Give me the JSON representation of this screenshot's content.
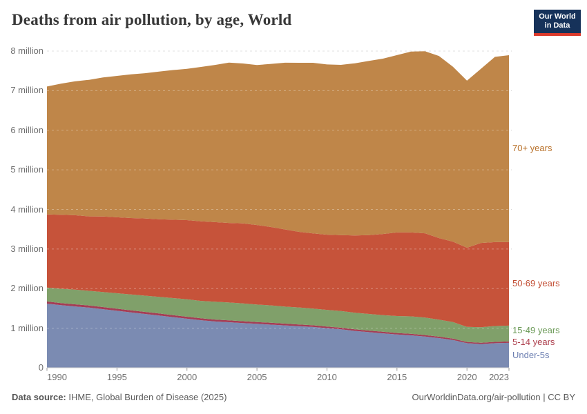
{
  "header": {
    "title": "Deaths from air pollution, by age, World",
    "logo": {
      "line1": "Our World",
      "line2": "in Data"
    }
  },
  "footer": {
    "source_label": "Data source:",
    "source_text": " IHME, Global Burden of Disease (2025)",
    "attribution": "OurWorldinData.org/air-pollution | CC BY"
  },
  "chart_data": {
    "type": "area",
    "stacked": true,
    "title": "Deaths from air pollution, by age, World",
    "xlabel": "",
    "ylabel": "",
    "unit": "deaths (millions)",
    "grid": "dashed-horizontal",
    "legend_position": "right-edge-labels",
    "x_range": [
      1990,
      2023
    ],
    "y_range": [
      0,
      8
    ],
    "x_ticks": [
      1990,
      1995,
      2000,
      2005,
      2010,
      2015,
      2020,
      2023
    ],
    "y_ticks": [
      {
        "value": 0,
        "label": "0"
      },
      {
        "value": 1,
        "label": "1 million"
      },
      {
        "value": 2,
        "label": "2 million"
      },
      {
        "value": 3,
        "label": "3 million"
      },
      {
        "value": 4,
        "label": "4 million"
      },
      {
        "value": 5,
        "label": "5 million"
      },
      {
        "value": 6,
        "label": "6 million"
      },
      {
        "value": 7,
        "label": "7 million"
      },
      {
        "value": 8,
        "label": "8 million"
      }
    ],
    "x": [
      1990,
      1991,
      1992,
      1993,
      1994,
      1995,
      1996,
      1997,
      1998,
      1999,
      2000,
      2001,
      2002,
      2003,
      2004,
      2005,
      2006,
      2007,
      2008,
      2009,
      2010,
      2011,
      2012,
      2013,
      2014,
      2015,
      2016,
      2017,
      2018,
      2019,
      2020,
      2021,
      2022,
      2023
    ],
    "series": [
      {
        "name": "Under-5s",
        "color": "#7b8bb2",
        "label_color": "#6e80b2",
        "values": [
          1.62,
          1.58,
          1.55,
          1.52,
          1.48,
          1.44,
          1.4,
          1.36,
          1.32,
          1.28,
          1.24,
          1.2,
          1.17,
          1.15,
          1.13,
          1.11,
          1.09,
          1.07,
          1.05,
          1.03,
          1.0,
          0.97,
          0.93,
          0.9,
          0.87,
          0.84,
          0.82,
          0.79,
          0.75,
          0.7,
          0.62,
          0.6,
          0.62,
          0.63
        ]
      },
      {
        "name": "5-14 years",
        "color": "#a43d55",
        "label_color": "#ad3e4c",
        "values": [
          0.055,
          0.055,
          0.054,
          0.054,
          0.053,
          0.052,
          0.052,
          0.051,
          0.051,
          0.05,
          0.05,
          0.049,
          0.049,
          0.048,
          0.047,
          0.046,
          0.046,
          0.045,
          0.044,
          0.043,
          0.042,
          0.042,
          0.041,
          0.04,
          0.039,
          0.038,
          0.038,
          0.037,
          0.036,
          0.035,
          0.032,
          0.033,
          0.034,
          0.035
        ]
      },
      {
        "name": "15-49 years",
        "color": "#80a06a",
        "label_color": "#6a9956",
        "values": [
          0.35,
          0.36,
          0.37,
          0.37,
          0.38,
          0.39,
          0.4,
          0.41,
          0.42,
          0.43,
          0.44,
          0.44,
          0.45,
          0.45,
          0.45,
          0.44,
          0.44,
          0.43,
          0.43,
          0.42,
          0.42,
          0.42,
          0.42,
          0.42,
          0.42,
          0.43,
          0.44,
          0.44,
          0.43,
          0.42,
          0.38,
          0.39,
          0.4,
          0.4
        ]
      },
      {
        "name": "50-69 years",
        "color": "#c6533a",
        "label_color": "#c24d33",
        "values": [
          1.85,
          1.87,
          1.88,
          1.88,
          1.91,
          1.92,
          1.93,
          1.95,
          1.96,
          1.98,
          2.0,
          2.01,
          2.01,
          2.01,
          2.02,
          2.01,
          1.98,
          1.95,
          1.91,
          1.9,
          1.9,
          1.92,
          1.95,
          1.99,
          2.05,
          2.11,
          2.12,
          2.13,
          2.06,
          2.03,
          2.0,
          2.13,
          2.12,
          2.11
        ]
      },
      {
        "name": "70+ years",
        "color": "#bf8649",
        "label_color": "#b9722b",
        "values": [
          3.23,
          3.31,
          3.38,
          3.45,
          3.51,
          3.57,
          3.63,
          3.67,
          3.73,
          3.78,
          3.82,
          3.9,
          3.97,
          4.05,
          4.04,
          4.04,
          4.12,
          4.21,
          4.27,
          4.31,
          4.3,
          4.3,
          4.35,
          4.4,
          4.43,
          4.48,
          4.57,
          4.6,
          4.6,
          4.42,
          4.22,
          4.4,
          4.68,
          4.72
        ]
      }
    ]
  }
}
